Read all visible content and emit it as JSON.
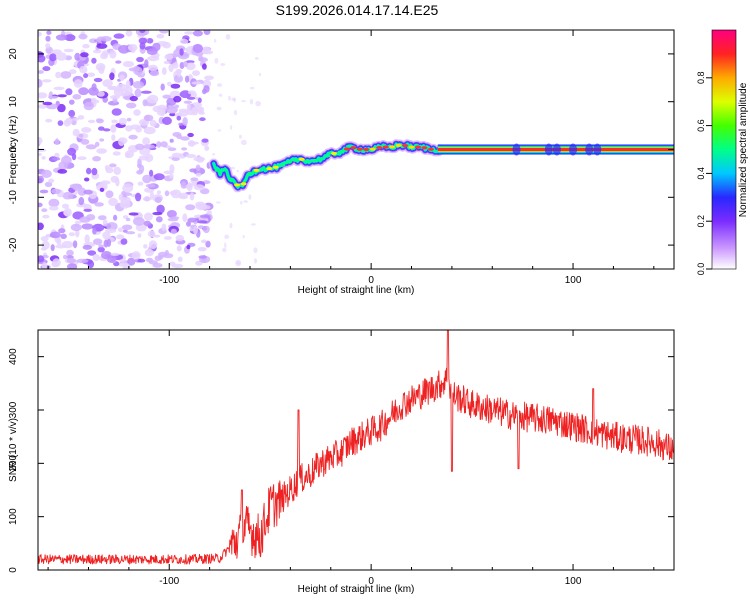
{
  "title": "S199.2026.014.17.14.E25",
  "chart_data": [
    {
      "type": "heatmap",
      "title": "S199.2026.014.17.14.E25",
      "xlabel": "Height of straight line (km)",
      "ylabel": "Frequency (Hz)",
      "xlim": [
        -165,
        150
      ],
      "ylim": [
        -25,
        25
      ],
      "xticks": [
        -100,
        0,
        100
      ],
      "yticks": [
        -20,
        -10,
        0,
        10,
        20
      ],
      "noise_region_x": [
        -165,
        -80
      ],
      "signal_track": {
        "x": [
          -78,
          -75,
          -72,
          -70,
          -68,
          -66,
          -64,
          -62,
          -60,
          -55,
          -50,
          -45,
          -40,
          -35,
          -30,
          -25,
          -20,
          -15,
          -10,
          -5,
          0,
          5,
          10,
          15,
          20,
          25,
          30,
          35,
          150
        ],
        "freq_hz": [
          -3,
          -5,
          -4,
          -6,
          -7,
          -7.5,
          -8,
          -6,
          -5,
          -4,
          -4,
          -3.5,
          -2.5,
          -2,
          -2.5,
          -2,
          -1,
          -0.5,
          0.5,
          0,
          0,
          0.5,
          0.5,
          1,
          0.5,
          0.5,
          0,
          0,
          0
        ]
      },
      "colorbar": {
        "label": "Normalized spectral amplitude",
        "ticks": [
          0.0,
          0.2,
          0.4,
          0.6,
          0.8
        ],
        "tick_labels": [
          "0.0",
          "0.2",
          "0.4",
          "0.6",
          "0.8"
        ],
        "range": [
          0,
          1
        ]
      }
    },
    {
      "type": "line",
      "xlabel": "Height of straight line (km)",
      "ylabel": "SNR (10 * v/v)",
      "xlim": [
        -165,
        150
      ],
      "ylim": [
        0,
        450
      ],
      "xticks": [
        -100,
        0,
        100
      ],
      "yticks": [
        0,
        100,
        200,
        300,
        400
      ],
      "color": "#ee2222",
      "series": [
        {
          "name": "SNR",
          "x": [
            -165,
            -150,
            -130,
            -110,
            -90,
            -75,
            -68,
            -62,
            -55,
            -50,
            -45,
            -40,
            -35,
            -30,
            -25,
            -20,
            -15,
            -10,
            -5,
            0,
            5,
            10,
            15,
            20,
            25,
            30,
            35,
            38,
            40,
            45,
            50,
            60,
            70,
            80,
            90,
            100,
            110,
            120,
            130,
            140,
            150
          ],
          "values": [
            20,
            20,
            20,
            20,
            20,
            22,
            50,
            80,
            60,
            120,
            130,
            150,
            170,
            180,
            200,
            210,
            220,
            240,
            250,
            260,
            270,
            290,
            310,
            320,
            330,
            340,
            350,
            360,
            330,
            320,
            310,
            300,
            290,
            285,
            280,
            270,
            260,
            250,
            245,
            240,
            225
          ]
        }
      ],
      "spikes": [
        {
          "x": -64,
          "y": 150
        },
        {
          "x": -36,
          "y": 300
        },
        {
          "x": 38,
          "y": 450
        },
        {
          "x": 40,
          "y": 185
        },
        {
          "x": 73,
          "y": 190
        },
        {
          "x": 110,
          "y": 340
        }
      ]
    }
  ]
}
